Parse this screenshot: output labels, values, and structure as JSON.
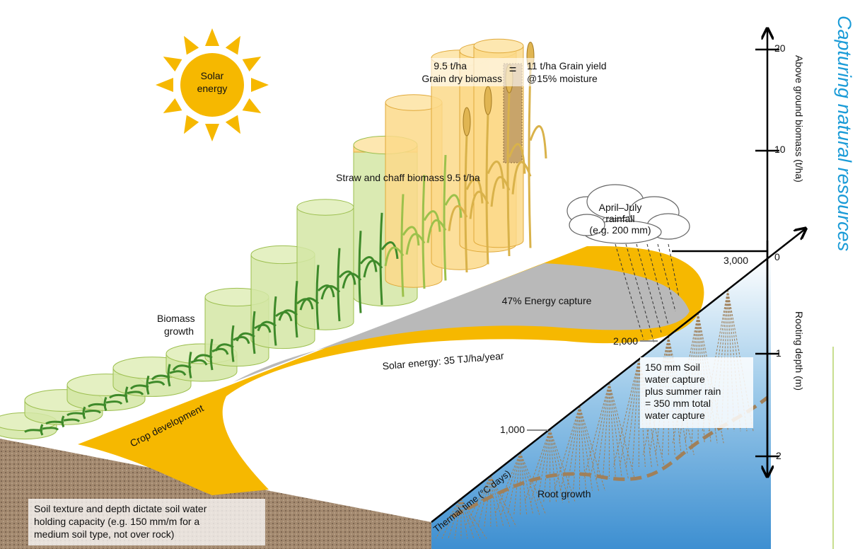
{
  "sun_label": [
    "Solar",
    "energy"
  ],
  "grain": {
    "dry_value": "9.5 t/ha",
    "dry_label": "Grain dry biomass",
    "equals": "=",
    "yield_lines": [
      "11 t/ha Grain yield",
      "@15% moisture"
    ]
  },
  "straw_label": "Straw and chaff biomass 9.5 t/ha",
  "biomass_label": [
    "Biomass",
    "growth"
  ],
  "rainfall_label": [
    "April–July",
    "rainfall",
    "(e.g. 200 mm)"
  ],
  "energy_capture_label": "47% Energy capture",
  "solar_energy_label": "Solar energy: 35 TJ/ha/year",
  "crop_development_label": "Crop development",
  "thermal_time": {
    "label": "Thermal time (°C days)",
    "ticks": [
      "1,000",
      "2,000",
      "3,000"
    ]
  },
  "water_capture_label": [
    "150 mm Soil",
    "water capture",
    "plus summer rain",
    "= 350 mm total",
    "water capture"
  ],
  "root_growth_label": "Root growth",
  "soil_label": [
    "Soil texture and depth dictate soil water",
    "holding capacity (e.g. 150 mm/m for a",
    "medium soil type, not over rock)"
  ],
  "biomass_axis": {
    "label": "Above ground biomass (t/ha)",
    "ticks": [
      "20",
      "10",
      "0"
    ]
  },
  "rooting_axis": {
    "label": "Rooting depth (m)",
    "ticks": [
      "1",
      "2"
    ]
  },
  "side_title": "Capturing natural resources"
}
